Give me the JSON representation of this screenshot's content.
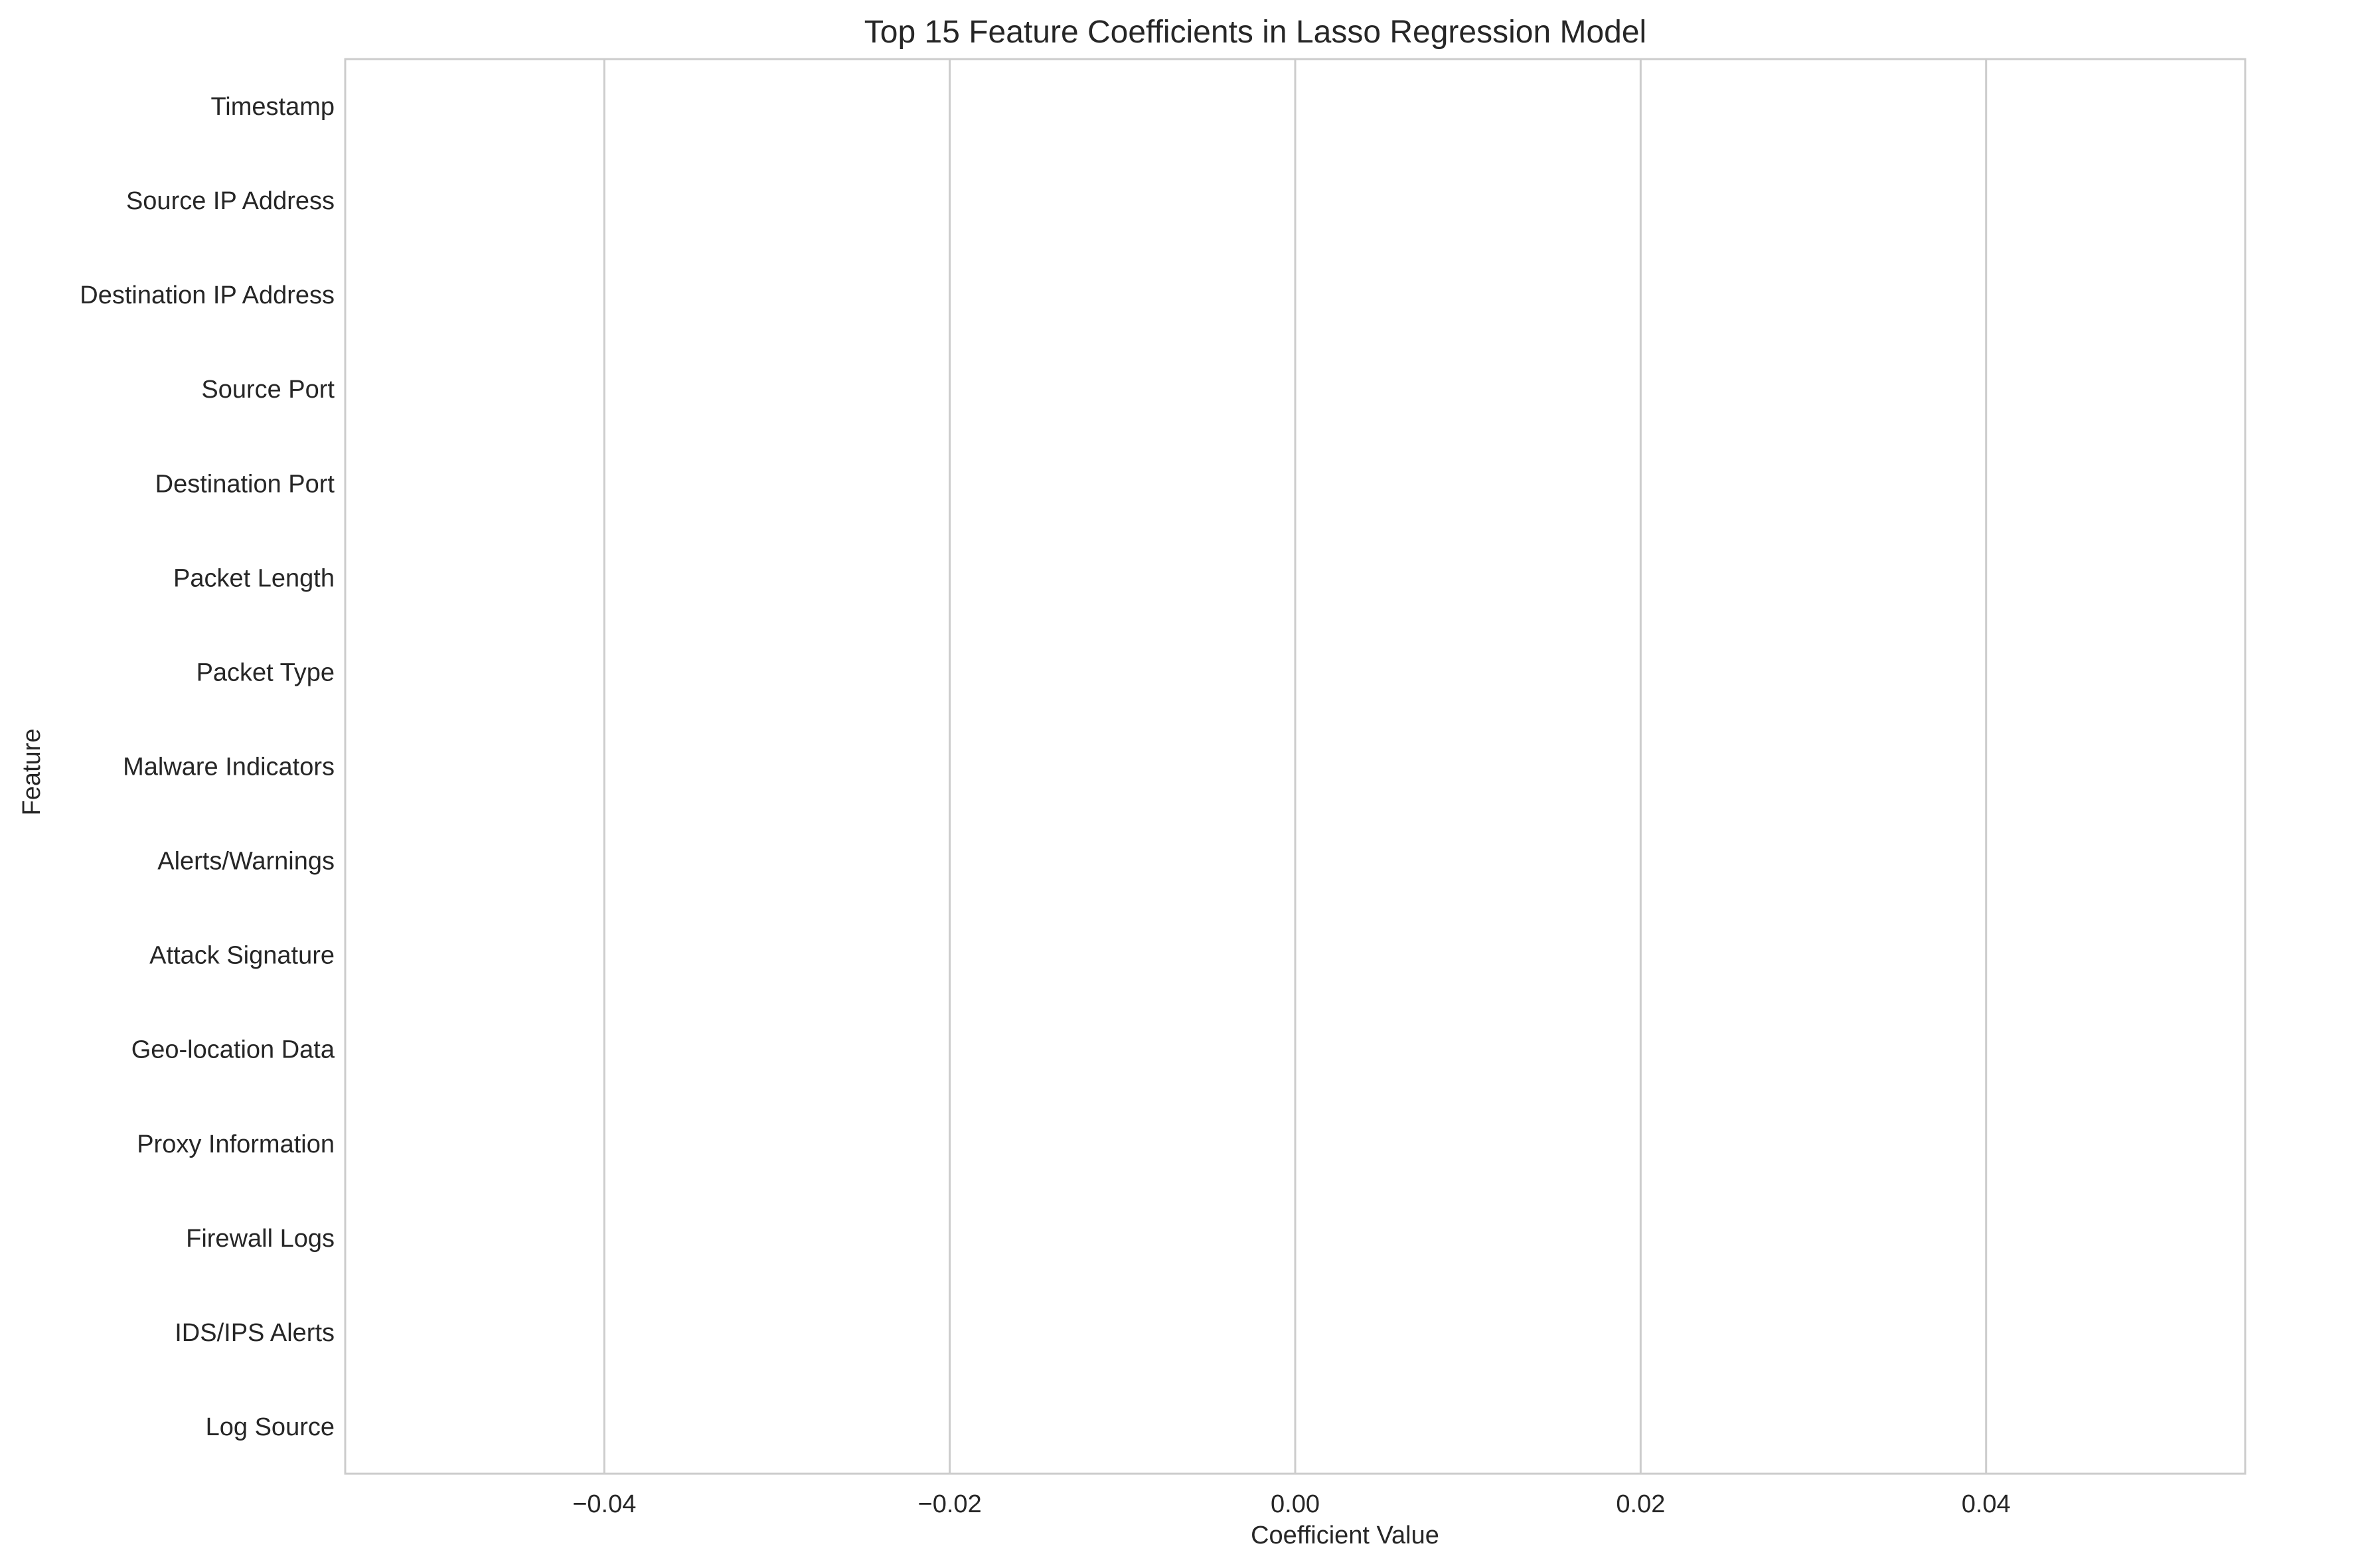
{
  "chart_data": {
    "type": "bar",
    "orientation": "horizontal",
    "title": "Top 15 Feature Coefficients in Lasso Regression Model",
    "xlabel": "Coefficient Value",
    "ylabel": "Feature",
    "categories": [
      "Timestamp",
      "Source IP Address",
      "Destination IP Address",
      "Source Port",
      "Destination Port",
      "Packet Length",
      "Packet Type",
      "Malware Indicators",
      "Alerts/Warnings",
      "Attack Signature",
      "Geo-location Data",
      "Proxy Information",
      "Firewall Logs",
      "IDS/IPS Alerts",
      "Log Source"
    ],
    "values": [
      0,
      0,
      0,
      0,
      0,
      0,
      0,
      0,
      0,
      0,
      0,
      0,
      0,
      0,
      0
    ],
    "xlim": [
      -0.055,
      0.055
    ],
    "xticks": [
      -0.04,
      -0.02,
      0.0,
      0.02,
      0.04
    ],
    "xtick_labels": [
      "−0.04",
      "−0.02",
      "0.00",
      "0.02",
      "0.04"
    ],
    "grid": "vertical",
    "legend": "none",
    "colors": {
      "grid": "#cccccc",
      "frame": "#cccccc",
      "text": "#262626",
      "bar": "#4c72b0"
    }
  }
}
